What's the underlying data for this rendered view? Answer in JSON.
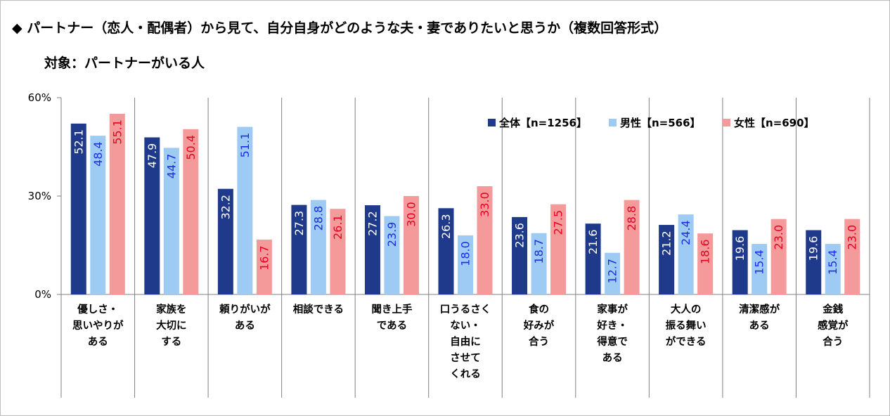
{
  "title": {
    "line1": "◆ パートナー（恋人・配偶者）から見て、自分自身がどのような夫・妻でありたいと思うか（複数回答形式）",
    "line2": "対象：パートナーがいる人"
  },
  "chart_data": {
    "type": "bar",
    "ylim": [
      0,
      60
    ],
    "yticks": [
      {
        "value": 0,
        "label": "0%"
      },
      {
        "value": 30,
        "label": "30%"
      },
      {
        "value": 60,
        "label": "60%"
      }
    ],
    "grid": false,
    "legend_position": "top-right",
    "categories": [
      [
        "優しさ・",
        "思いやりが",
        "ある"
      ],
      [
        "家族を",
        "大切に",
        "する"
      ],
      [
        "頼りがいが",
        "ある"
      ],
      [
        "相談できる"
      ],
      [
        "聞き上手",
        "である"
      ],
      [
        "口うるさく",
        "ない・",
        "自由に",
        "させて",
        "くれる"
      ],
      [
        "食の",
        "好みが",
        "合う"
      ],
      [
        "家事が",
        "好き・",
        "得意で",
        "ある"
      ],
      [
        "大人の",
        "振る舞い",
        "ができる"
      ],
      [
        "清潔感が",
        "ある"
      ],
      [
        "金銭",
        "感覚が",
        "合う"
      ]
    ],
    "series": [
      {
        "name": "全体【n=1256】",
        "color": "#1f3a8a",
        "label_color": "#ffffff",
        "values": [
          52.1,
          47.9,
          32.2,
          27.3,
          27.2,
          26.3,
          23.6,
          21.6,
          21.2,
          19.6,
          19.6
        ],
        "labels": [
          "52.1",
          "47.9",
          "32.2",
          "27.3",
          "27.2",
          "26.3",
          "23.6",
          "21.6",
          "21.2",
          "19.6",
          "19.6"
        ]
      },
      {
        "name": "男性【n=566】",
        "color": "#9dcbf4",
        "label_color": "#1a2ee0",
        "values": [
          48.4,
          44.7,
          51.1,
          28.8,
          23.9,
          18.0,
          18.7,
          12.7,
          24.4,
          15.4,
          15.4
        ],
        "labels": [
          "48.4",
          "44.7",
          "51.1",
          "28.8",
          "23.9",
          "18.0",
          "18.7",
          "12.7",
          "24.4",
          "15.4",
          "15.4"
        ]
      },
      {
        "name": "女性【n=690】",
        "color": "#f59a9a",
        "label_color": "#e8001e",
        "values": [
          55.1,
          50.4,
          16.7,
          26.1,
          30.0,
          33.0,
          27.5,
          28.8,
          18.6,
          23.0,
          23.0
        ],
        "labels": [
          "55.1",
          "50.4",
          "16.7",
          "26.1",
          "30.0",
          "33.0",
          "27.5",
          "28.8",
          "18.6",
          "23.0",
          "23.0"
        ]
      }
    ]
  }
}
